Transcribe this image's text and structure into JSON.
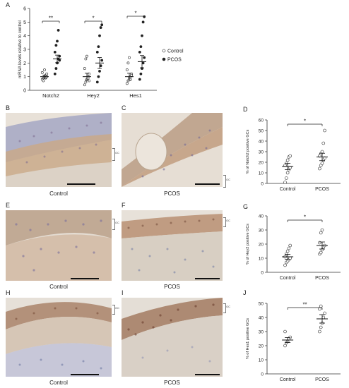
{
  "panels": {
    "A": "A",
    "B": "B",
    "C": "C",
    "D": "D",
    "E": "E",
    "F": "F",
    "G": "G",
    "H": "H",
    "I": "I",
    "J": "J"
  },
  "images": {
    "B": {
      "caption": "Control",
      "gc_label": "GC"
    },
    "C": {
      "caption": "PCOS",
      "gc_label": "GC"
    },
    "E": {
      "caption": "Control",
      "gc_label": "GC"
    },
    "F": {
      "caption": "PCOS",
      "gc_label": "GC"
    },
    "H": {
      "caption": "Control",
      "gc_label": "GC"
    },
    "I": {
      "caption": "PCOS",
      "gc_label": "GC"
    }
  },
  "colors": {
    "tissue_bg": "#e8e1d8",
    "tissue_brown": "#c9a98a",
    "tissue_blue": "#8f90b8",
    "scale_bar": "#111111"
  },
  "chart_data": [
    {
      "panel": "A",
      "type": "scatter",
      "ylabel": "mRNA levels relative to control",
      "ylim": [
        0,
        6
      ],
      "yticks": [
        "0",
        "1",
        "2",
        "3",
        "4",
        "5",
        "6"
      ],
      "categories": [
        "Notch2",
        "Hey2",
        "Hes1"
      ],
      "legend": [
        "Control",
        "PCOS"
      ],
      "legend_position": "right",
      "significance": [
        "**",
        "*",
        "*"
      ],
      "series": [
        {
          "name": "Control",
          "marker": "open",
          "mean": [
            1.0,
            1.0,
            1.0
          ],
          "sem": [
            0.12,
            0.25,
            0.25
          ],
          "points": [
            [
              0.8,
              0.9,
              1.0,
              1.1,
              1.2,
              1.3,
              0.7,
              1.5,
              0.9,
              1.0
            ],
            [
              0.4,
              0.6,
              0.8,
              1.0,
              1.2,
              1.6,
              2.3,
              2.5,
              0.9,
              0.7
            ],
            [
              0.5,
              0.7,
              0.9,
              1.0,
              1.2,
              1.5,
              2.0,
              2.4,
              0.8,
              1.1
            ]
          ]
        },
        {
          "name": "PCOS",
          "marker": "filled",
          "mean": [
            2.3,
            2.0,
            2.1
          ],
          "sem": [
            0.28,
            0.4,
            0.45
          ],
          "points": [
            [
              1.2,
              1.6,
              2.0,
              2.3,
              2.5,
              2.8,
              3.3,
              3.6,
              4.4,
              2.2
            ],
            [
              0.6,
              1.0,
              1.4,
              1.8,
              2.2,
              2.8,
              3.2,
              4.0,
              4.6,
              4.8
            ],
            [
              0.8,
              1.2,
              1.6,
              2.0,
              2.4,
              2.8,
              3.2,
              4.0,
              5.0,
              5.4
            ]
          ]
        }
      ]
    },
    {
      "panel": "D",
      "type": "scatter",
      "ylabel": "% of Notch2 positive GCs",
      "ylim": [
        0,
        60
      ],
      "yticks": [
        "0",
        "10",
        "20",
        "30",
        "40",
        "50",
        "60"
      ],
      "categories": [
        "Control",
        "PCOS"
      ],
      "significance": "*",
      "series": [
        {
          "name": "Control",
          "mean": 16,
          "sem": 3,
          "points": [
            1,
            5,
            10,
            13,
            15,
            17,
            19,
            22,
            25,
            26
          ]
        },
        {
          "name": "PCOS",
          "mean": 25,
          "sem": 3.5,
          "points": [
            14,
            17,
            19,
            22,
            24,
            26,
            28,
            30,
            38,
            50
          ]
        }
      ]
    },
    {
      "panel": "G",
      "type": "scatter",
      "ylabel": "% of Hey2 positive GCs",
      "ylim": [
        0,
        40
      ],
      "yticks": [
        "0",
        "10",
        "20",
        "30",
        "40"
      ],
      "categories": [
        "Control",
        "PCOS"
      ],
      "significance": "*",
      "series": [
        {
          "name": "Control",
          "mean": 11,
          "sem": 1.8,
          "points": [
            5,
            7,
            8,
            9,
            10,
            11,
            13,
            15,
            17,
            19
          ]
        },
        {
          "name": "PCOS",
          "mean": 19,
          "sem": 2.5,
          "points": [
            13,
            14,
            16,
            18,
            19,
            21,
            28,
            30
          ]
        }
      ]
    },
    {
      "panel": "J",
      "type": "scatter",
      "ylabel": "% of Hes1 positive GCs",
      "ylim": [
        0,
        50
      ],
      "yticks": [
        "0",
        "10",
        "20",
        "30",
        "40",
        "50"
      ],
      "categories": [
        "Control",
        "PCOS"
      ],
      "significance": "**",
      "series": [
        {
          "name": "Control",
          "mean": 24,
          "sem": 1.8,
          "points": [
            20,
            22,
            23,
            25,
            26,
            30
          ]
        },
        {
          "name": "PCOS",
          "mean": 39,
          "sem": 3,
          "points": [
            30,
            33,
            36,
            40,
            43,
            46,
            48
          ]
        }
      ]
    }
  ]
}
